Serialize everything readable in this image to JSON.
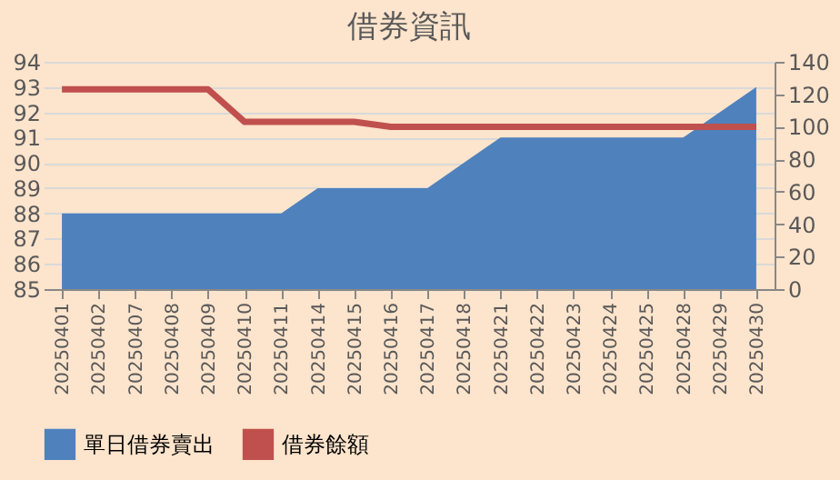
{
  "chart_data": {
    "type": "area",
    "title": "借券資訊",
    "categories": [
      "20250401",
      "20250402",
      "20250407",
      "20250408",
      "20250409",
      "20250410",
      "20250411",
      "20250414",
      "20250415",
      "20250416",
      "20250417",
      "20250418",
      "20250421",
      "20250422",
      "20250423",
      "20250424",
      "20250425",
      "20250428",
      "20250429",
      "20250430"
    ],
    "series": [
      {
        "name": "單日借券賣出",
        "color": "#4f81bd",
        "values": [
          88,
          88,
          88,
          88,
          88,
          88,
          88,
          89,
          89,
          89,
          89,
          90,
          91,
          91,
          91,
          91,
          91,
          91,
          92,
          93
        ]
      },
      {
        "name": "借券餘額",
        "type": "line",
        "axis": "y2",
        "color": "#c0504d",
        "values": [
          123,
          123,
          123,
          123,
          123,
          103,
          103,
          103,
          103,
          100,
          100,
          100,
          100,
          100,
          100,
          100,
          100,
          100,
          100,
          100
        ]
      }
    ],
    "ylim": [
      85,
      94
    ],
    "yticks": [
      85,
      86,
      87,
      88,
      89,
      90,
      91,
      92,
      93,
      94
    ],
    "y2lim": [
      0,
      140
    ],
    "y2ticks": [
      0,
      20,
      40,
      60,
      80,
      100,
      120,
      140
    ],
    "grid": "y",
    "legend": "bottom"
  }
}
